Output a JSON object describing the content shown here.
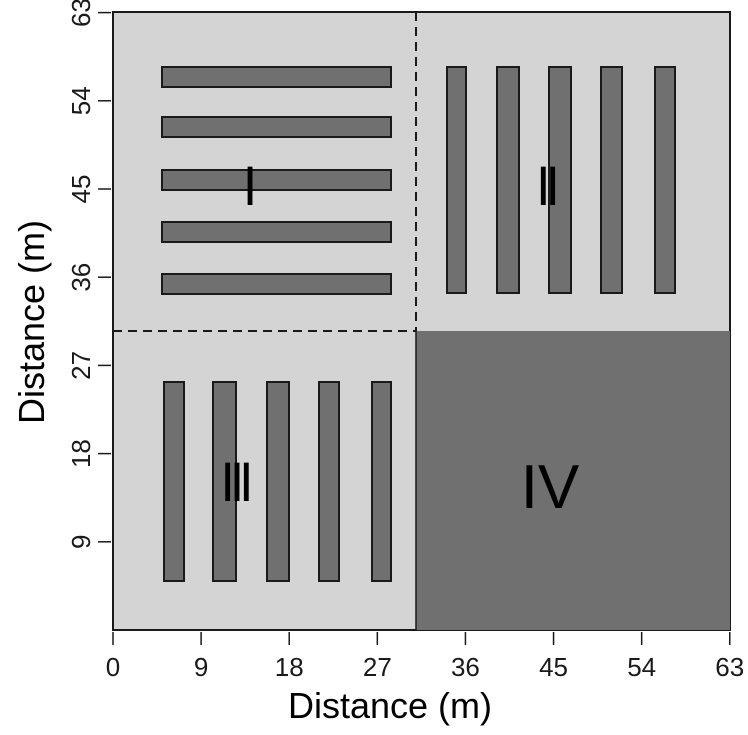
{
  "diagram": {
    "x_axis": {
      "label": "Distance (m)",
      "ticks": [
        "0",
        "9",
        "18",
        "27",
        "36",
        "45",
        "54",
        "63"
      ]
    },
    "y_axis": {
      "label": "Distance (m)",
      "ticks": [
        "9",
        "18",
        "27",
        "36",
        "45",
        "54",
        "63"
      ]
    },
    "quadrants": [
      {
        "label": "I",
        "orientation": "horizontal strips",
        "strips": 5
      },
      {
        "label": "II",
        "orientation": "vertical strips",
        "strips": 5
      },
      {
        "label": "III",
        "orientation": "vertical strips",
        "strips": 5
      },
      {
        "label": "IV",
        "orientation": "no strips",
        "strips": 0
      }
    ],
    "colors": {
      "background": "#d4d4d4",
      "strip": "#707070",
      "quadrant_iv": "#707070",
      "outline": "#1a1a1a"
    }
  }
}
